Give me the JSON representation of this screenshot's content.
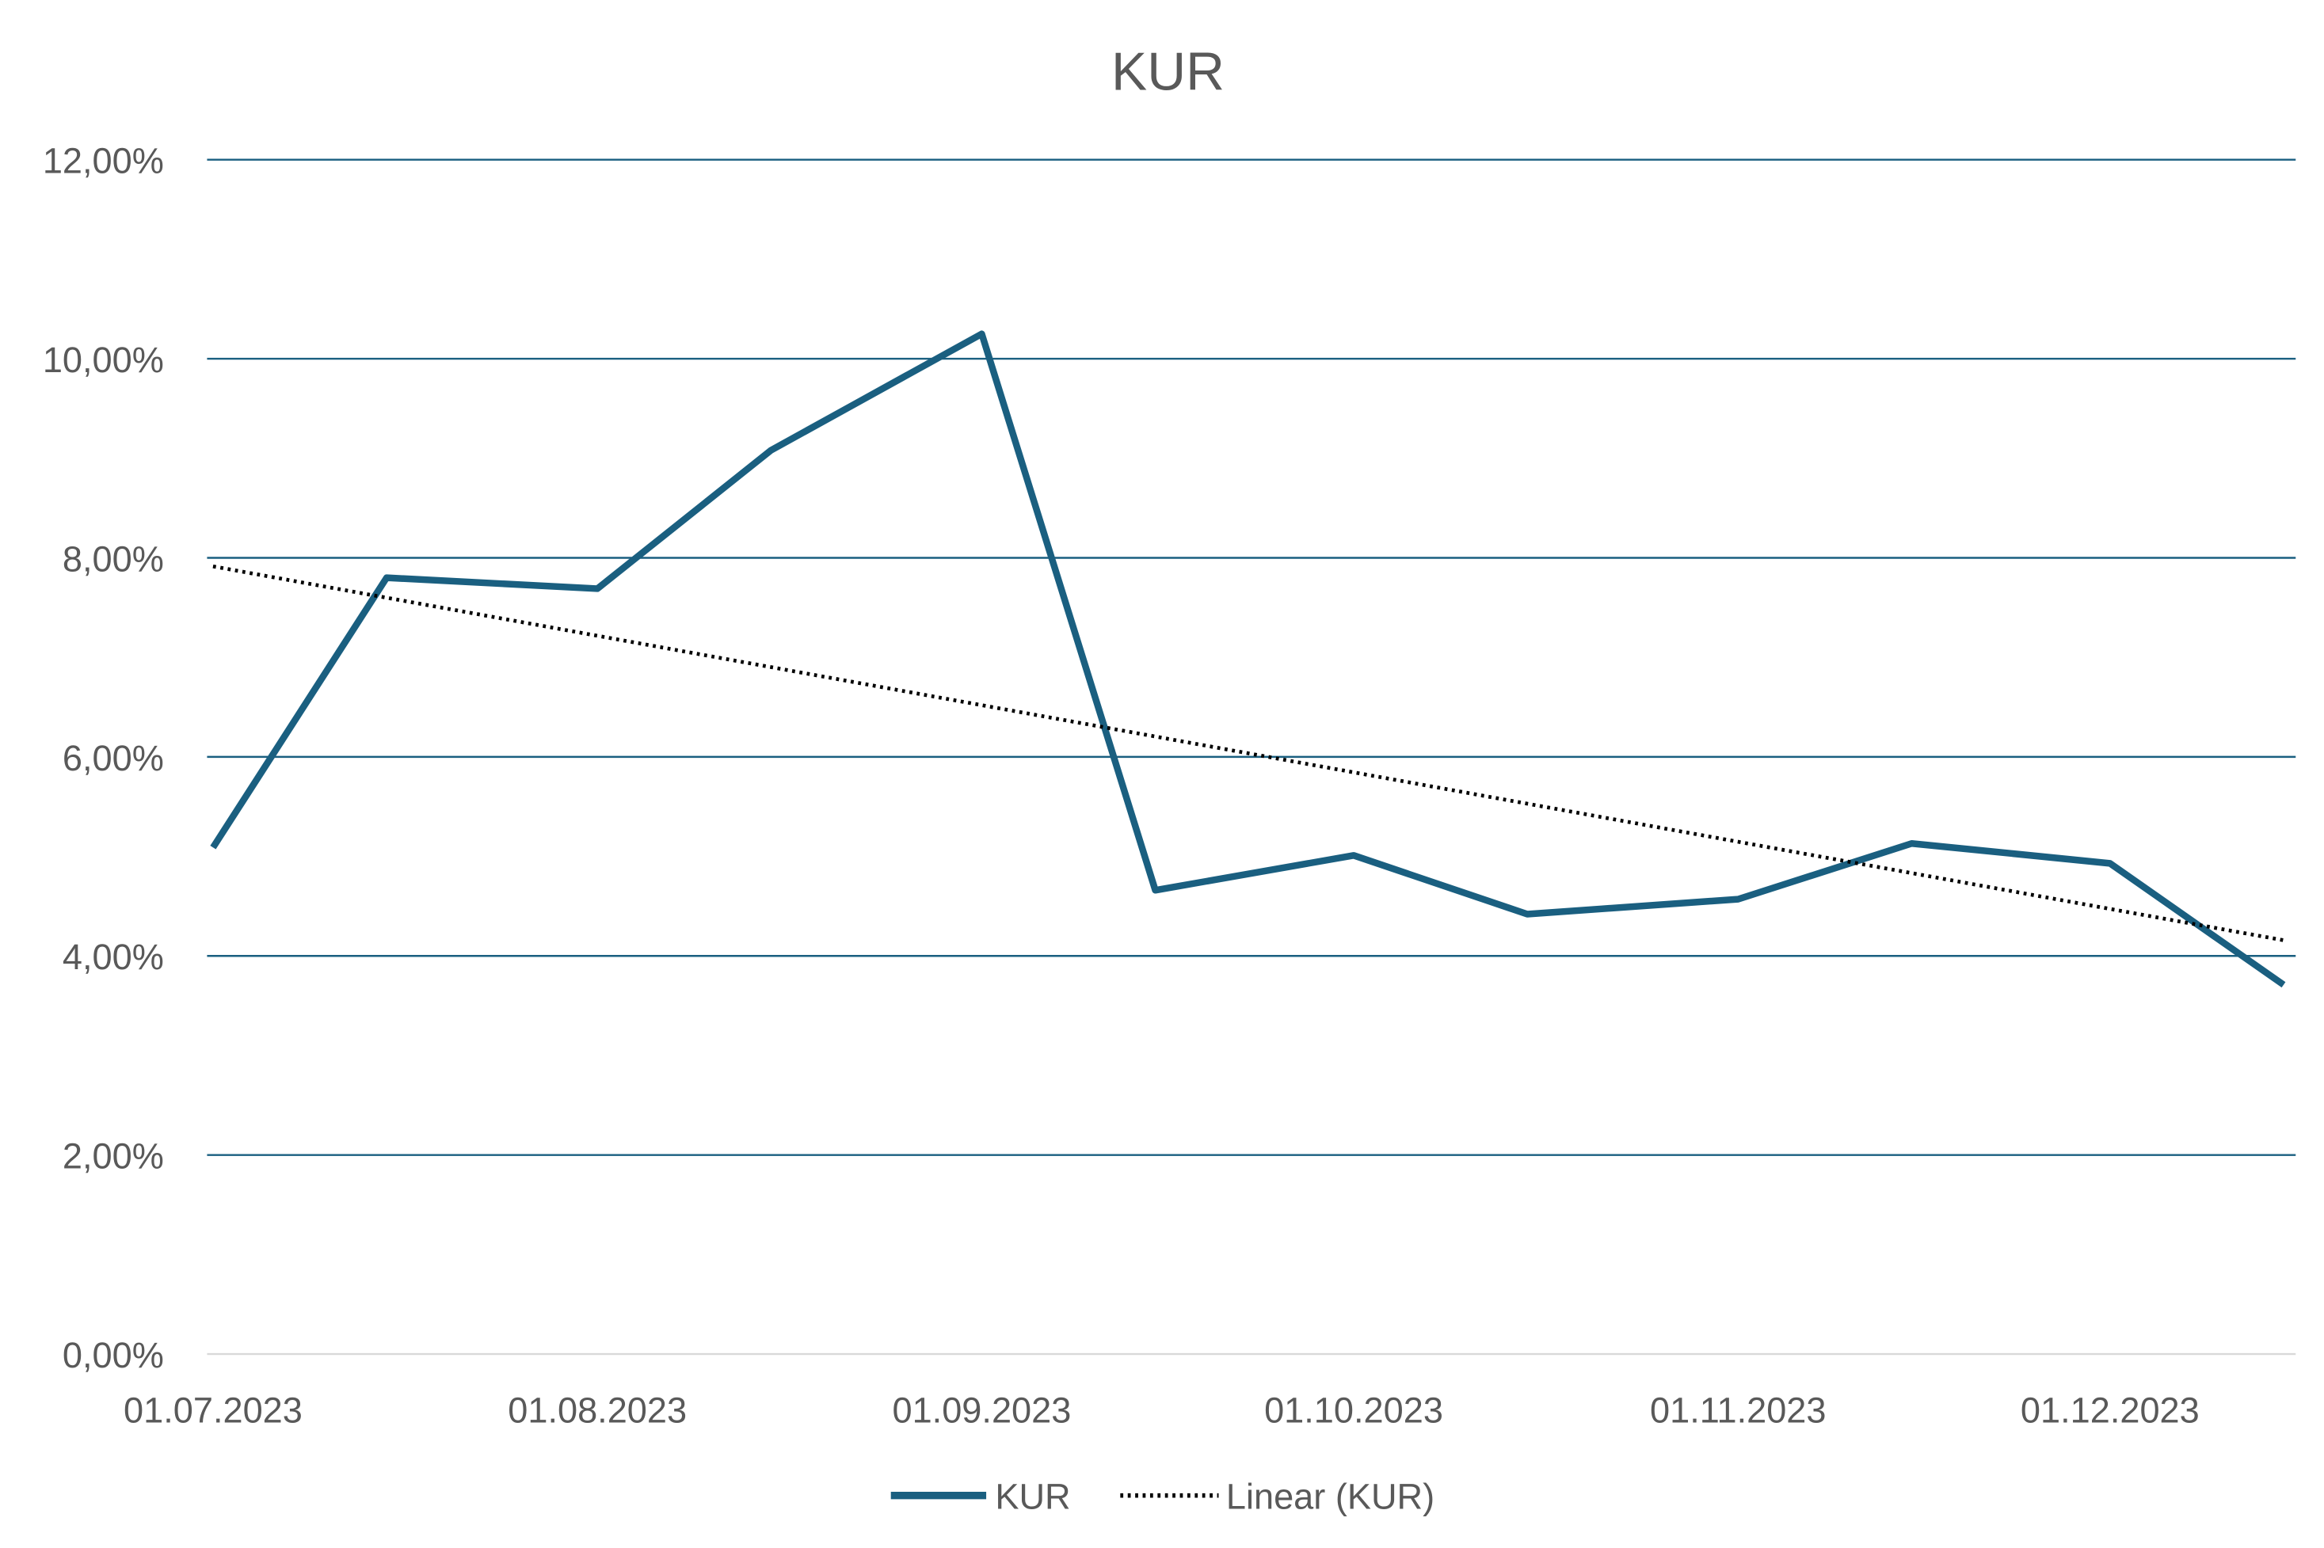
{
  "chart_data": {
    "type": "line",
    "title": "KUR",
    "xlabel": "",
    "ylabel": "",
    "x": [
      "01.07.2023",
      "15.07.2023",
      "01.08.2023",
      "15.08.2023",
      "01.09.2023",
      "15.09.2023",
      "01.10.2023",
      "15.10.2023",
      "01.11.2023",
      "15.11.2023",
      "01.12.2023",
      "15.12.2023"
    ],
    "x_tick_labels": [
      "01.07.2023",
      "01.08.2023",
      "01.09.2023",
      "01.10.2023",
      "01.11.2023",
      "01.12.2023"
    ],
    "y_tick_labels": [
      "0,00%",
      "2,00%",
      "4,00%",
      "6,00%",
      "8,00%",
      "10,00%",
      "12,00%"
    ],
    "ylim": [
      0,
      12
    ],
    "grid": "horizontal",
    "legend_position": "bottom",
    "series": [
      {
        "name": "KUR",
        "color": "#1a5f80",
        "style": "solid",
        "values": [
          5.09,
          7.8,
          7.69,
          9.08,
          10.25,
          4.66,
          5.01,
          4.42,
          4.57,
          5.13,
          4.93,
          3.71
        ]
      },
      {
        "name": "Linear (KUR)",
        "color": "#000000",
        "style": "dotted",
        "trendline": "linear",
        "of": "KUR"
      }
    ]
  }
}
